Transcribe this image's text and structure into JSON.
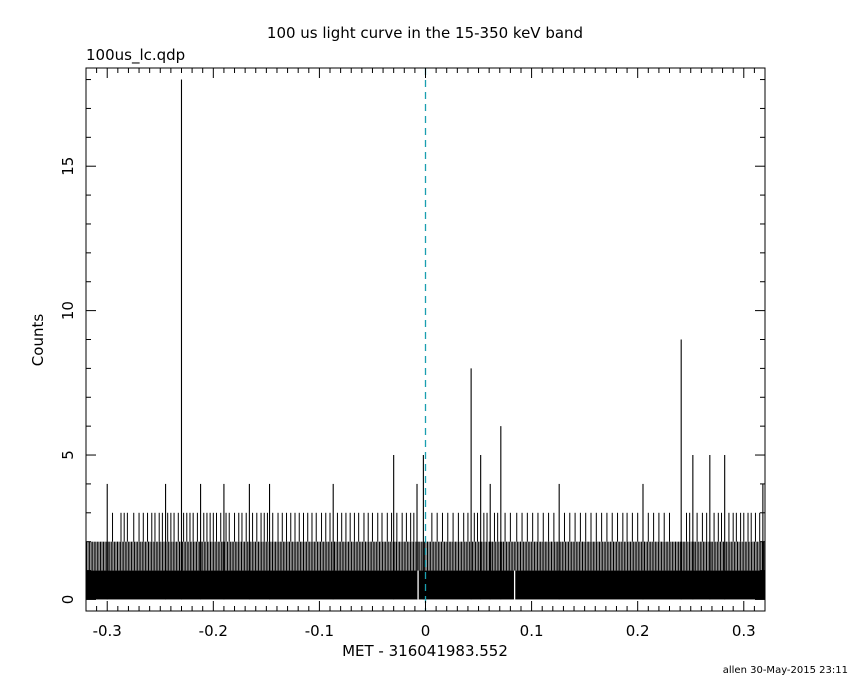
{
  "chart_data": {
    "type": "bar",
    "title": "100 us light curve in the 15-350 keV band",
    "subtitle": "100us_lc.qdp",
    "xlabel": "MET - 316041983.552",
    "ylabel": "Counts",
    "footer": "allen 30-May-2015 23:11",
    "xlim": [
      -0.32,
      0.32
    ],
    "ylim": [
      -0.4,
      18.4
    ],
    "x_ticks": [
      -0.3,
      -0.2,
      -0.1,
      0,
      0.1,
      0.2,
      0.3
    ],
    "x_tick_labels": [
      "-0.3",
      "-0.2",
      "-0.1",
      "0",
      "0.1",
      "0.2",
      "0.3"
    ],
    "y_ticks": [
      0,
      5,
      10,
      15
    ],
    "y_tick_labels": [
      "0",
      "5",
      "10",
      "15"
    ],
    "bin_width": 0.0001,
    "baseline_band": [
      0,
      1
    ],
    "background_band": [
      1,
      2
    ],
    "trigger_line_x": 0,
    "trigger_line_color": "#1a9fb0",
    "peaks": {
      "x": [
        -0.3,
        -0.245,
        -0.23,
        -0.212,
        -0.19,
        -0.166,
        -0.147,
        -0.087,
        -0.03,
        -0.008,
        -0.002,
        0.043,
        0.052,
        0.061,
        0.071,
        0.126,
        0.205,
        0.241,
        0.252,
        0.268,
        0.282,
        0.318
      ],
      "y": [
        4,
        4,
        18,
        4,
        4,
        4,
        4,
        4,
        5,
        4,
        5,
        8,
        5,
        4,
        6,
        4,
        4,
        9,
        5,
        5,
        5,
        4
      ]
    },
    "three_count_bins_x": [
      -0.295,
      -0.287,
      -0.284,
      -0.281,
      -0.275,
      -0.27,
      -0.266,
      -0.262,
      -0.258,
      -0.255,
      -0.251,
      -0.248,
      -0.243,
      -0.24,
      -0.237,
      -0.233,
      -0.228,
      -0.225,
      -0.222,
      -0.219,
      -0.215,
      -0.209,
      -0.206,
      -0.203,
      -0.2,
      -0.197,
      -0.193,
      -0.188,
      -0.185,
      -0.18,
      -0.176,
      -0.173,
      -0.169,
      -0.163,
      -0.159,
      -0.155,
      -0.152,
      -0.149,
      -0.144,
      -0.139,
      -0.135,
      -0.131,
      -0.127,
      -0.123,
      -0.119,
      -0.115,
      -0.111,
      -0.107,
      -0.103,
      -0.098,
      -0.094,
      -0.09,
      -0.083,
      -0.079,
      -0.075,
      -0.071,
      -0.067,
      -0.063,
      -0.058,
      -0.054,
      -0.05,
      -0.045,
      -0.041,
      -0.036,
      -0.032,
      -0.027,
      -0.022,
      -0.018,
      -0.014,
      -0.011,
      0.006,
      0.011,
      0.016,
      0.021,
      0.026,
      0.031,
      0.036,
      0.04,
      0.046,
      0.049,
      0.055,
      0.058,
      0.065,
      0.068,
      0.075,
      0.08,
      0.086,
      0.091,
      0.096,
      0.101,
      0.106,
      0.111,
      0.116,
      0.121,
      0.131,
      0.136,
      0.141,
      0.146,
      0.151,
      0.156,
      0.161,
      0.166,
      0.171,
      0.176,
      0.181,
      0.186,
      0.19,
      0.195,
      0.2,
      0.21,
      0.215,
      0.22,
      0.225,
      0.23,
      0.246,
      0.249,
      0.256,
      0.261,
      0.265,
      0.272,
      0.276,
      0.279,
      0.286,
      0.29,
      0.293,
      0.297,
      0.3,
      0.304,
      0.307,
      0.311,
      0.315
    ],
    "dips_to_zero_x": [
      -0.007,
      0.084
    ]
  }
}
